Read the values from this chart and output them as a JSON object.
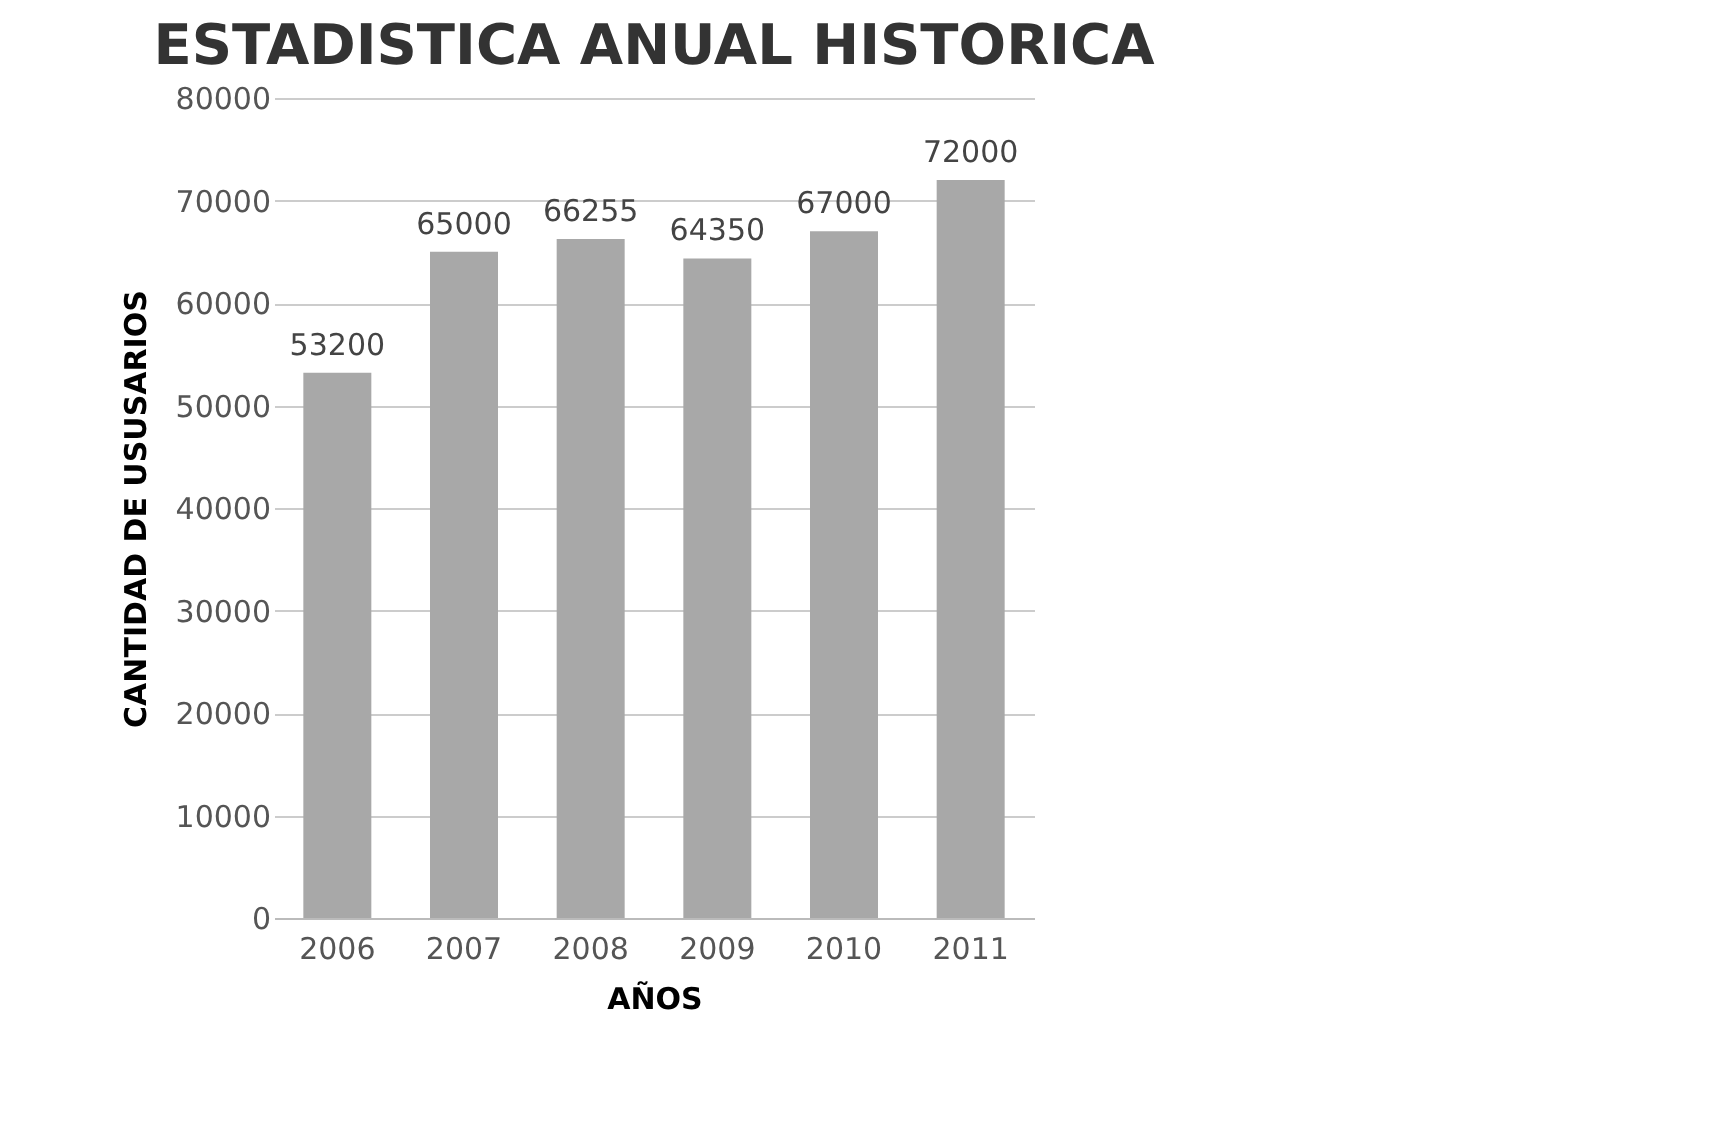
{
  "chart_data": {
    "type": "bar",
    "title": "ESTADISTICA ANUAL HISTORICA",
    "xlabel": "AÑOS",
    "ylabel": "CANTIDAD DE USUSARIOS",
    "categories": [
      "2006",
      "2007",
      "2008",
      "2009",
      "2010",
      "2011"
    ],
    "values": [
      53200,
      65000,
      66255,
      64350,
      67000,
      72000
    ],
    "color": "#a8a8a8",
    "ylim": [
      0,
      80000
    ],
    "yticks": [
      0,
      10000,
      20000,
      30000,
      40000,
      50000,
      60000,
      70000,
      80000
    ],
    "grid": "y",
    "data_labels": true
  }
}
